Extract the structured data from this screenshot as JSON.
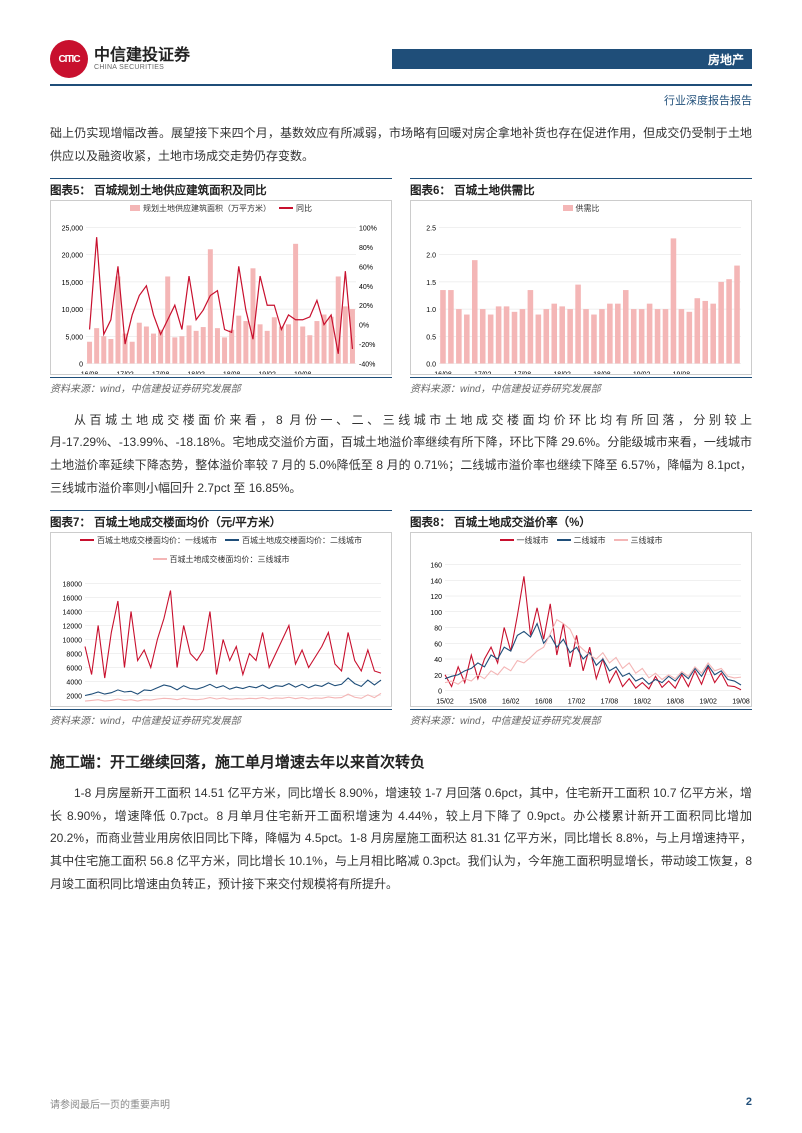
{
  "header": {
    "logo_cn": "中信建投证券",
    "logo_en": "CHINA SECURITIES",
    "logo_abbr": "CITIC",
    "category": "房地产",
    "subtitle": "行业深度报告报告"
  },
  "para_intro": "础上仍实现增幅改善。展望接下来四个月，基数效应有所减弱，市场略有回暖对房企拿地补货也存在促进作用，但成交仍受制于土地供应以及融资收紧，土地市场成交走势仍存变数。",
  "chart5": {
    "title": "图表5：  百城规划土地供应建筑面积及同比",
    "type": "bar+line",
    "legend": [
      {
        "label": "规划土地供应建筑面积（万平方米）",
        "color": "#f4b6b6",
        "kind": "bar"
      },
      {
        "label": "同比",
        "color": "#c8102e",
        "kind": "line"
      }
    ],
    "x_labels": [
      "16/08",
      "17/02",
      "17/08",
      "18/02",
      "18/08",
      "19/02",
      "19/08"
    ],
    "y_left": {
      "min": 0,
      "max": 25000,
      "step": 5000
    },
    "y_right": {
      "min": -40,
      "max": 100,
      "step": 20,
      "suffix": "%"
    },
    "bar_color": "#f4b6b6",
    "line_color": "#c8102e",
    "grid_color": "#e0e0e0",
    "bars": [
      4000,
      6500,
      5000,
      4500,
      16000,
      5500,
      4000,
      7500,
      6800,
      5500,
      6200,
      16000,
      4800,
      5000,
      7000,
      6000,
      6700,
      21000,
      6500,
      4800,
      6200,
      8800,
      7800,
      17500,
      7200,
      6000,
      8500,
      6800,
      7200,
      22000,
      6800,
      5200,
      7800,
      9000,
      8600,
      16000,
      10500,
      10000
    ],
    "line_vals": [
      -5,
      90,
      -10,
      5,
      60,
      -20,
      10,
      30,
      40,
      10,
      -10,
      5,
      20,
      -5,
      50,
      5,
      15,
      30,
      35,
      -5,
      -8,
      60,
      15,
      -15,
      50,
      20,
      20,
      -5,
      10,
      5,
      5,
      8,
      25,
      0,
      10,
      -30,
      55,
      -25
    ],
    "source": "资料来源：wind，中信建投证券研究发展部"
  },
  "chart6": {
    "title": "图表6：  百城土地供需比",
    "type": "bar",
    "legend": [
      {
        "label": "供需比",
        "color": "#f4b6b6",
        "kind": "bar"
      }
    ],
    "x_labels": [
      "16/08",
      "17/02",
      "17/08",
      "18/02",
      "18/08",
      "19/02",
      "19/08"
    ],
    "y_left": {
      "min": 0,
      "max": 2.5,
      "step": 0.5
    },
    "bar_color": "#f4b6b6",
    "grid_color": "#e0e0e0",
    "bars": [
      1.35,
      1.35,
      1.0,
      0.9,
      1.9,
      1.0,
      0.9,
      1.05,
      1.05,
      0.95,
      1.0,
      1.35,
      0.9,
      1.0,
      1.1,
      1.05,
      1.0,
      1.45,
      1.0,
      0.9,
      1.0,
      1.1,
      1.1,
      1.35,
      1.0,
      1.0,
      1.1,
      1.0,
      1.0,
      2.3,
      1.0,
      0.95,
      1.2,
      1.15,
      1.1,
      1.5,
      1.55,
      1.8
    ],
    "source": "资料来源：wind，中信建投证券研究发展部"
  },
  "para_mid": "从百城土地成交楼面价来看，8 月份一、二、三线城市土地成交楼面均价环比均有所回落，分别较上月-17.29%、-13.99%、-18.18%。宅地成交溢价方面，百城土地溢价率继续有所下降，环比下降 29.6%。分能级城市来看，一线城市土地溢价率延续下降态势，整体溢价率较 7 月的 5.0%降低至 8 月的 0.71%；二线城市溢价率也继续下降至 6.57%，降幅为 8.1pct，三线城市溢价率则小幅回升 2.7pct 至 16.85%。",
  "chart7": {
    "title": "图表7：  百城土地成交楼面均价（元/平方米）",
    "type": "line",
    "legend": [
      {
        "label": "百城土地成交楼面均价：一线城市",
        "color": "#c8102e",
        "kind": "line"
      },
      {
        "label": "百城土地成交楼面均价：二线城市",
        "color": "#1f4e79",
        "kind": "line"
      },
      {
        "label": "百城土地成交楼面均价：三线城市",
        "color": "#f4b6b6",
        "kind": "line"
      }
    ],
    "x_labels": [
      "15/02",
      "15/08",
      "16/02",
      "16/08",
      "17/02",
      "17/08",
      "18/02",
      "18/08",
      "19/02",
      "19/08"
    ],
    "y_left": {
      "min": 0,
      "max": 18000,
      "step": 2000
    },
    "grid_color": "#e0e0e0",
    "series": {
      "tier1": {
        "color": "#c8102e",
        "vals": [
          9000,
          5000,
          12000,
          4500,
          11000,
          15500,
          6000,
          14000,
          7000,
          8500,
          6000,
          10000,
          13000,
          17000,
          6000,
          12000,
          8000,
          7000,
          8500,
          14000,
          5000,
          10000,
          7000,
          9000,
          5000,
          8000,
          7000,
          11000,
          6000,
          8000,
          10000,
          12000,
          6500,
          8500,
          6000,
          7500,
          9000,
          11000,
          6500,
          5500,
          11000,
          7000,
          5500,
          8500,
          5500,
          5200
        ]
      },
      "tier2": {
        "color": "#1f4e79",
        "vals": [
          2000,
          2200,
          2500,
          2200,
          2400,
          2800,
          2500,
          2600,
          2200,
          2800,
          2700,
          3100,
          3500,
          3300,
          2800,
          3400,
          3000,
          2900,
          3200,
          3600,
          3100,
          3400,
          2900,
          3200,
          3000,
          3300,
          3100,
          3500,
          3000,
          3400,
          3300,
          3700,
          3200,
          3600,
          3100,
          3500,
          3300,
          3800,
          3400,
          3600,
          4500,
          3700,
          3300,
          4200,
          3500,
          4200
        ]
      },
      "tier3": {
        "color": "#f4b6b6",
        "vals": [
          1200,
          1300,
          1400,
          1200,
          1300,
          1500,
          1300,
          1400,
          1200,
          1400,
          1350,
          1500,
          1600,
          1550,
          1400,
          1600,
          1450,
          1400,
          1500,
          1700,
          1500,
          1650,
          1450,
          1550,
          1500,
          1600,
          1550,
          1700,
          1500,
          1650,
          1600,
          1750,
          1550,
          1700,
          1500,
          1650,
          1600,
          1800,
          1650,
          1700,
          2200,
          1750,
          1600,
          2100,
          1700,
          2300
        ]
      }
    },
    "source": "资料来源：wind，中信建投证券研究发展部"
  },
  "chart8": {
    "title": "图表8：  百城土地成交溢价率（%）",
    "type": "line",
    "legend": [
      {
        "label": "一线城市",
        "color": "#c8102e",
        "kind": "line"
      },
      {
        "label": "二线城市",
        "color": "#1f4e79",
        "kind": "line"
      },
      {
        "label": "三线城市",
        "color": "#f4b6b6",
        "kind": "line"
      }
    ],
    "x_labels": [
      "15/02",
      "15/08",
      "16/02",
      "16/08",
      "17/02",
      "17/08",
      "18/02",
      "18/08",
      "19/02",
      "19/08"
    ],
    "y_left": {
      "min": 0,
      "max": 160,
      "step": 20
    },
    "grid_color": "#e0e0e0",
    "series": {
      "tier1": {
        "color": "#c8102e",
        "vals": [
          20,
          5,
          30,
          10,
          45,
          15,
          40,
          55,
          35,
          80,
          50,
          95,
          145,
          70,
          105,
          65,
          110,
          45,
          85,
          30,
          70,
          25,
          55,
          15,
          40,
          10,
          25,
          5,
          15,
          3,
          10,
          2,
          18,
          4,
          12,
          3,
          20,
          5,
          25,
          8,
          30,
          10,
          22,
          6,
          5,
          1
        ]
      },
      "tier2": {
        "color": "#1f4e79",
        "vals": [
          15,
          18,
          20,
          25,
          28,
          35,
          30,
          45,
          40,
          55,
          50,
          70,
          75,
          68,
          85,
          60,
          70,
          55,
          65,
          48,
          55,
          40,
          48,
          32,
          40,
          25,
          30,
          18,
          22,
          12,
          16,
          8,
          14,
          10,
          18,
          12,
          22,
          15,
          28,
          18,
          32,
          20,
          25,
          14,
          12,
          7
        ]
      },
      "tier3": {
        "color": "#f4b6b6",
        "vals": [
          10,
          12,
          8,
          15,
          12,
          20,
          15,
          25,
          20,
          30,
          25,
          38,
          35,
          42,
          50,
          55,
          72,
          90,
          85,
          78,
          60,
          52,
          45,
          40,
          48,
          35,
          42,
          28,
          35,
          22,
          28,
          16,
          22,
          14,
          20,
          15,
          24,
          18,
          30,
          22,
          35,
          25,
          28,
          18,
          16,
          17
        ]
      }
    },
    "source": "资料来源：wind，中信建投证券研究发展部"
  },
  "section_heading": "施工端：开工继续回落，施工单月增速去年以来首次转负",
  "para_end": "1-8 月房屋新开工面积 14.51 亿平方米，同比增长 8.90%，增速较 1-7 月回落 0.6pct，其中，住宅新开工面积 10.7 亿平方米，增长 8.90%，增速降低 0.7pct。8 月单月住宅新开工面积增速为 4.44%，较上月下降了 0.9pct。办公楼累计新开工面积同比增加 20.2%，而商业营业用房依旧同比下降，降幅为 4.5pct。1-8 月房屋施工面积达 81.31 亿平方米，同比增长 8.8%，与上月增速持平，其中住宅施工面积 56.8 亿平方米，同比增长 10.1%，与上月相比略减 0.3pct。我们认为，今年施工面积明显增长，带动竣工恢复，8 月竣工面积同比增速由负转正，预计接下来交付规模将有所提升。",
  "footer": {
    "disclaimer": "请参阅最后一页的重要声明",
    "page": "2"
  }
}
